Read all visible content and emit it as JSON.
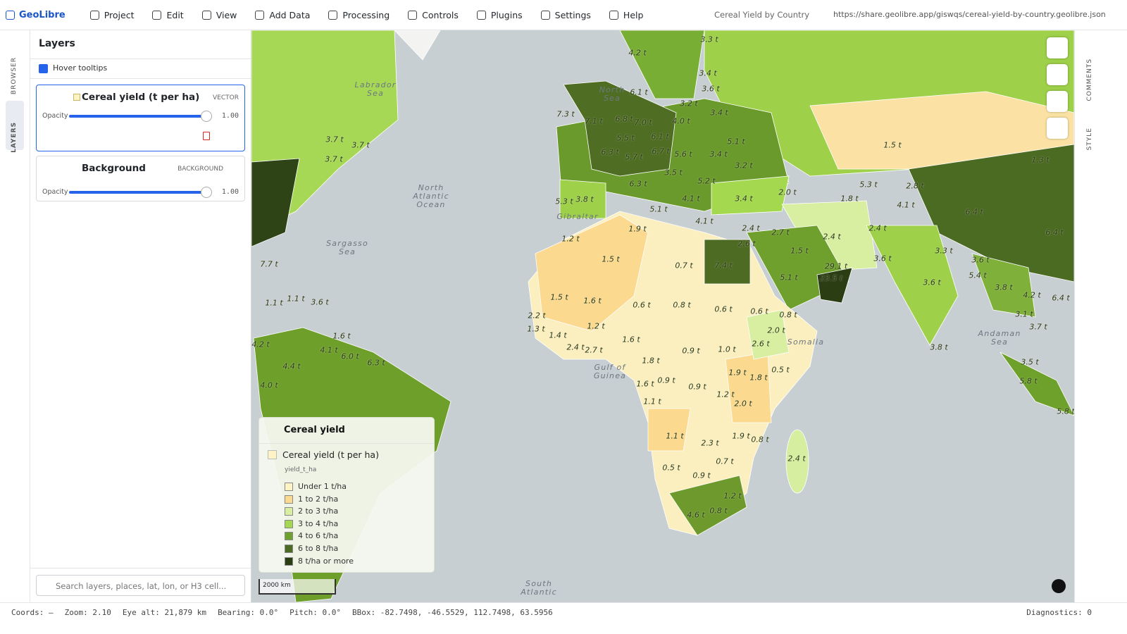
{
  "header": {
    "brand": "GeoLibre",
    "menu": [
      "Project",
      "Edit",
      "View",
      "Add Data",
      "Processing",
      "Controls",
      "Plugins",
      "Settings",
      "Help"
    ],
    "project_title": "Cereal Yield by Country",
    "url": "https://share.geolibre.app/giswqs/cereal-yield-by-country.geolibre.json"
  },
  "left_rail": [
    "BROWSER",
    "LAYERS"
  ],
  "right_rail": [
    "COMMENTS",
    "STYLE"
  ],
  "layers_panel": {
    "title": "Layers",
    "hover_tooltips": "Hover tooltips",
    "layers": [
      {
        "name": "Cereal yield (t per ha)",
        "kind": "VECTOR",
        "opacity_label": "Opacity",
        "opacity": "1.00"
      },
      {
        "name": "Background",
        "kind": "BACKGROUND",
        "opacity_label": "Opacity",
        "opacity": "1.00"
      }
    ],
    "search_placeholder": "Search layers, places, lat, lon, or H3 cell..."
  },
  "legend": {
    "title": "Cereal yield",
    "layer": "Cereal yield (t per ha)",
    "field": "yield_t_ha",
    "classes": [
      {
        "label": "Under 1 t/ha",
        "color": "#fdf3c4"
      },
      {
        "label": "1 to 2 t/ha",
        "color": "#fbd98f"
      },
      {
        "label": "2 to 3 t/ha",
        "color": "#d8eea0"
      },
      {
        "label": "3 to 4 t/ha",
        "color": "#a3d84f"
      },
      {
        "label": "4 to 6 t/ha",
        "color": "#6ea12b"
      },
      {
        "label": "6 to 8 t/ha",
        "color": "#4c6b22"
      },
      {
        "label": "8 t/ha or more",
        "color": "#2a3d13"
      }
    ]
  },
  "map": {
    "scale": "2000 km",
    "places": [
      "Labrador\nSea",
      "North\nSea",
      "North\nAtlantic\nOcean",
      "Sargasso\nSea",
      "Gulf of\nGuinea",
      "Andaman\nSea",
      "South\nAtlantic",
      "Gibraltar",
      "Somalia"
    ],
    "value_labels": [
      "4.2 t",
      "3.3 t",
      "3.4 t",
      "3.6 t",
      "6.1 t",
      "7.3 t",
      "7.1 t",
      "6.8 t",
      "7.0 t",
      "4.0 t",
      "3.2 t",
      "3.4 t",
      "5.5 t",
      "6.1 t",
      "5.1 t",
      "6.3 t",
      "5.7 t",
      "6.7 t",
      "5.6 t",
      "3.4 t",
      "3.2 t",
      "3.5 t",
      "5.2 t",
      "6.3 t",
      "4.1 t",
      "5.1 t",
      "4.1 t",
      "5.3 t",
      "3.8 t",
      "3.4 t",
      "2.0 t",
      "1.5 t",
      "1.3 t",
      "5.3 t",
      "2.8 t",
      "1.8 t",
      "4.1 t",
      "6.4 t",
      "6.4 t",
      "1.2 t",
      "1.9 t",
      "2.4 t",
      "2.7 t",
      "2.6 t",
      "2.4 t",
      "2.4 t",
      "1.5 t",
      "0.7 t",
      "7.4 t",
      "1.5 t",
      "3.3 t",
      "29.1 t",
      "3.6 t",
      "3.6 t",
      "5.1 t",
      "23.5 t",
      "5.4 t",
      "3.8 t",
      "4.2 t",
      "6.4 t",
      "1.5 t",
      "1.6 t",
      "0.6 t",
      "0.8 t",
      "0.6 t",
      "0.6 t",
      "0.8 t",
      "3.6 t",
      "3.1 t",
      "3.7 t",
      "2.2 t",
      "1.3 t",
      "1.2 t",
      "1.4 t",
      "1.6 t",
      "2.0 t",
      "2.6 t",
      "2.4 t",
      "2.7 t",
      "0.9 t",
      "1.0 t",
      "3.8 t",
      "1.8 t",
      "1.9 t",
      "1.8 t",
      "0.5 t",
      "3.5 t",
      "1.6 t",
      "0.9 t",
      "0.9 t",
      "1.2 t",
      "5.8 t",
      "1.1 t",
      "2.0 t",
      "5.8 t",
      "1.1 t",
      "1.9 t",
      "0.8 t",
      "2.3 t",
      "2.4 t",
      "0.7 t",
      "0.5 t",
      "0.9 t",
      "1.2 t",
      "4.6 t",
      "0.8 t",
      "3.7 t",
      "3.7 t",
      "3.7 t",
      "7.7 t",
      "1.1 t",
      "1.1 t",
      "3.6 t",
      "1.6 t",
      "4.1 t",
      "6.0 t",
      "6.3 t",
      "4.2 t",
      "4.4 t",
      "4.0 t"
    ]
  },
  "status_bar": [
    "Coords: —",
    "Zoom: 2.10",
    "Eye alt: 21,879 km",
    "Bearing: 0.0°",
    "Pitch: 0.0°",
    "BBox: -82.7498, -46.5529, 112.7498, 63.5956"
  ],
  "diagnostics": "Diagnostics: 0"
}
